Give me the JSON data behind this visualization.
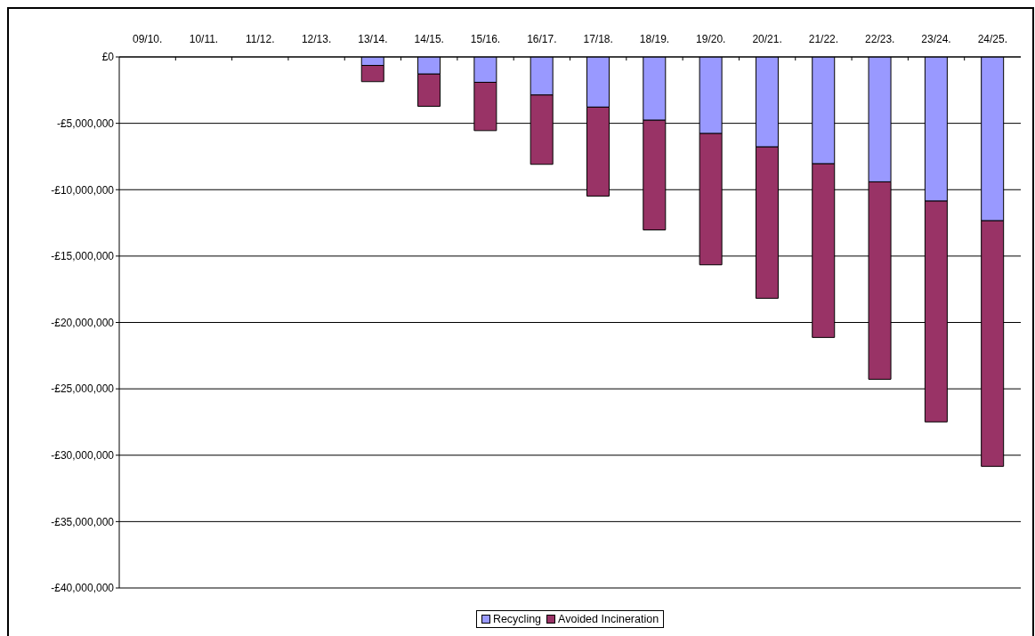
{
  "chart_data": {
    "type": "bar",
    "categories": [
      "09/10.",
      "10/11.",
      "11/12.",
      "12/13.",
      "13/14.",
      "14/15.",
      "15/16.",
      "16/17.",
      "17/18.",
      "18/19.",
      "19/20.",
      "20/21.",
      "21/22.",
      "22/23.",
      "23/24.",
      "24/25."
    ],
    "series": [
      {
        "name": "Recycling",
        "color": "#9999ff",
        "values": [
          null,
          null,
          null,
          null,
          -640000,
          -1290000,
          -1910000,
          -2870000,
          -3780000,
          -4770000,
          -5770000,
          -6780000,
          -8050000,
          -9410000,
          -10860000,
          -12340000
        ]
      },
      {
        "name": "Avoided Incineration",
        "color": "#993366",
        "values": [
          null,
          null,
          null,
          null,
          -1220000,
          -2430000,
          -3640000,
          -5220000,
          -6700000,
          -8260000,
          -9890000,
          -11400000,
          -13080000,
          -14870000,
          -16630000,
          -18500000
        ]
      }
    ],
    "stacked": true,
    "ylim": [
      -40000000,
      0
    ],
    "yticks": [
      {
        "value": -40000000,
        "label": "-£40,000,000"
      },
      {
        "value": -35000000,
        "label": "-£35,000,000"
      },
      {
        "value": -30000000,
        "label": "-£30,000,000"
      },
      {
        "value": -25000000,
        "label": "-£25,000,000"
      },
      {
        "value": -20000000,
        "label": "-£20,000,000"
      },
      {
        "value": -15000000,
        "label": "-£15,000,000"
      },
      {
        "value": -10000000,
        "label": "-£10,000,000"
      },
      {
        "value": -5000000,
        "label": "-£5,000,000"
      },
      {
        "value": 0,
        "label": "£0"
      }
    ],
    "grid": "y",
    "legend": "bottom"
  }
}
